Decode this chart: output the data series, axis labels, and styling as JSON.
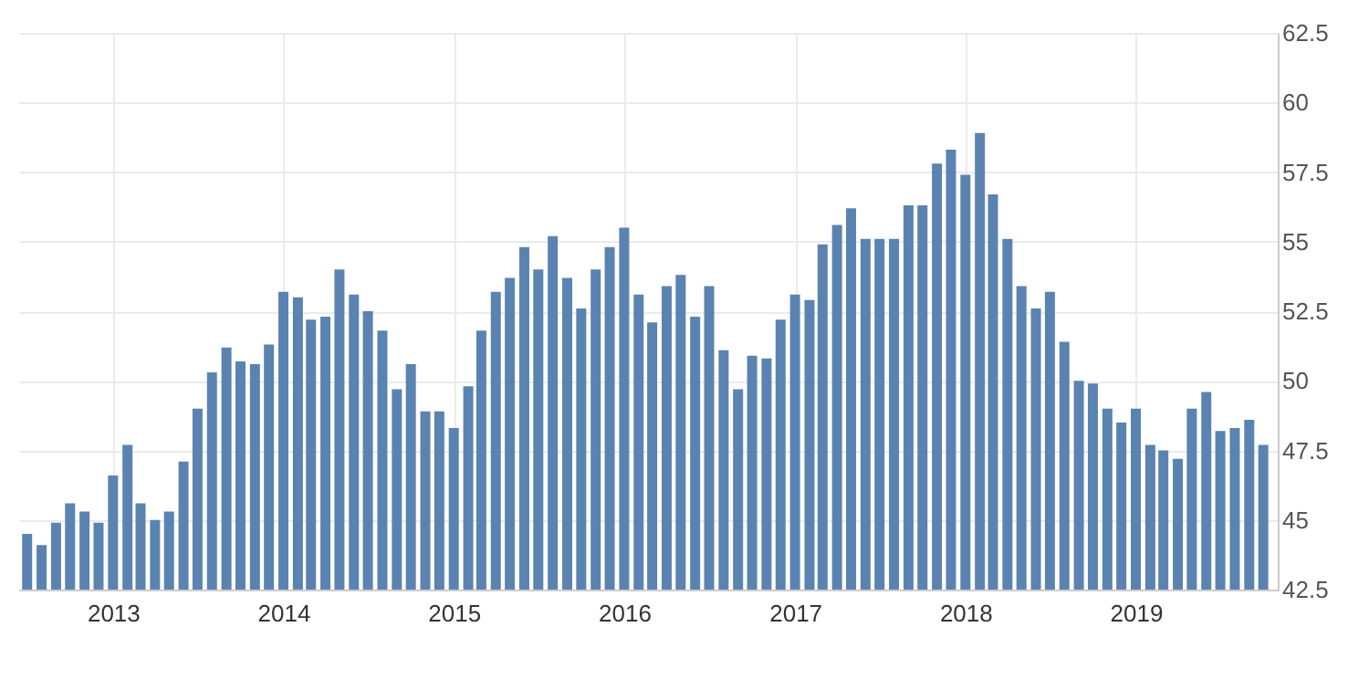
{
  "chart_data": {
    "type": "bar",
    "x": [
      "2012-07",
      "2012-08",
      "2012-09",
      "2012-10",
      "2012-11",
      "2012-12",
      "2013-01",
      "2013-02",
      "2013-03",
      "2013-04",
      "2013-05",
      "2013-06",
      "2013-07",
      "2013-08",
      "2013-09",
      "2013-10",
      "2013-11",
      "2013-12",
      "2014-01",
      "2014-02",
      "2014-03",
      "2014-04",
      "2014-05",
      "2014-06",
      "2014-07",
      "2014-08",
      "2014-09",
      "2014-10",
      "2014-11",
      "2014-12",
      "2015-01",
      "2015-02",
      "2015-03",
      "2015-04",
      "2015-05",
      "2015-06",
      "2015-07",
      "2015-08",
      "2015-09",
      "2015-10",
      "2015-11",
      "2015-12",
      "2016-01",
      "2016-02",
      "2016-03",
      "2016-04",
      "2016-05",
      "2016-06",
      "2016-07",
      "2016-08",
      "2016-09",
      "2016-10",
      "2016-11",
      "2016-12",
      "2017-01",
      "2017-02",
      "2017-03",
      "2017-04",
      "2017-05",
      "2017-06",
      "2017-07",
      "2017-08",
      "2017-09",
      "2017-10",
      "2017-11",
      "2017-12",
      "2018-01",
      "2018-02",
      "2018-03",
      "2018-04",
      "2018-05",
      "2018-06",
      "2018-07",
      "2018-08",
      "2018-09",
      "2018-10",
      "2018-11",
      "2018-12",
      "2019-01",
      "2019-02",
      "2019-03",
      "2019-04",
      "2019-05",
      "2019-06",
      "2019-07",
      "2019-08",
      "2019-09",
      "2019-10"
    ],
    "series": [
      {
        "color": "#5b83b1",
        "values": [
          44.5,
          44.1,
          44.9,
          45.6,
          45.3,
          44.9,
          46.6,
          47.7,
          45.6,
          45.0,
          45.3,
          47.1,
          49.0,
          50.3,
          51.2,
          50.7,
          50.6,
          51.3,
          53.2,
          53.0,
          52.2,
          52.3,
          54.0,
          53.1,
          52.5,
          51.8,
          49.7,
          50.6,
          48.9,
          48.9,
          48.3,
          49.8,
          51.8,
          53.2,
          53.7,
          54.8,
          54.0,
          55.2,
          53.7,
          52.6,
          54.0,
          54.8,
          55.5,
          53.1,
          52.1,
          53.4,
          53.8,
          52.3,
          53.4,
          51.1,
          49.7,
          50.9,
          50.8,
          52.2,
          53.1,
          52.9,
          54.9,
          55.6,
          56.2,
          55.1,
          55.1,
          55.1,
          56.3,
          56.3,
          57.8,
          58.3,
          57.4,
          58.9,
          56.7,
          55.1,
          53.4,
          52.6,
          53.2,
          51.4,
          50.0,
          49.9,
          49.0,
          48.5,
          49.0,
          47.7,
          47.5,
          47.2,
          49.0,
          49.6,
          48.2,
          48.3,
          48.6,
          47.7
        ]
      }
    ],
    "xlim": [
      "2012-06-12",
      "2019-11-01"
    ],
    "xticks": [
      "2013",
      "2014",
      "2015",
      "2016",
      "2017",
      "2018",
      "2019"
    ],
    "ylim": [
      42.5,
      62.5
    ],
    "yticks": [
      42.5,
      45,
      47.5,
      50,
      52.5,
      55,
      57.5,
      60,
      62.5
    ],
    "grid": true
  }
}
